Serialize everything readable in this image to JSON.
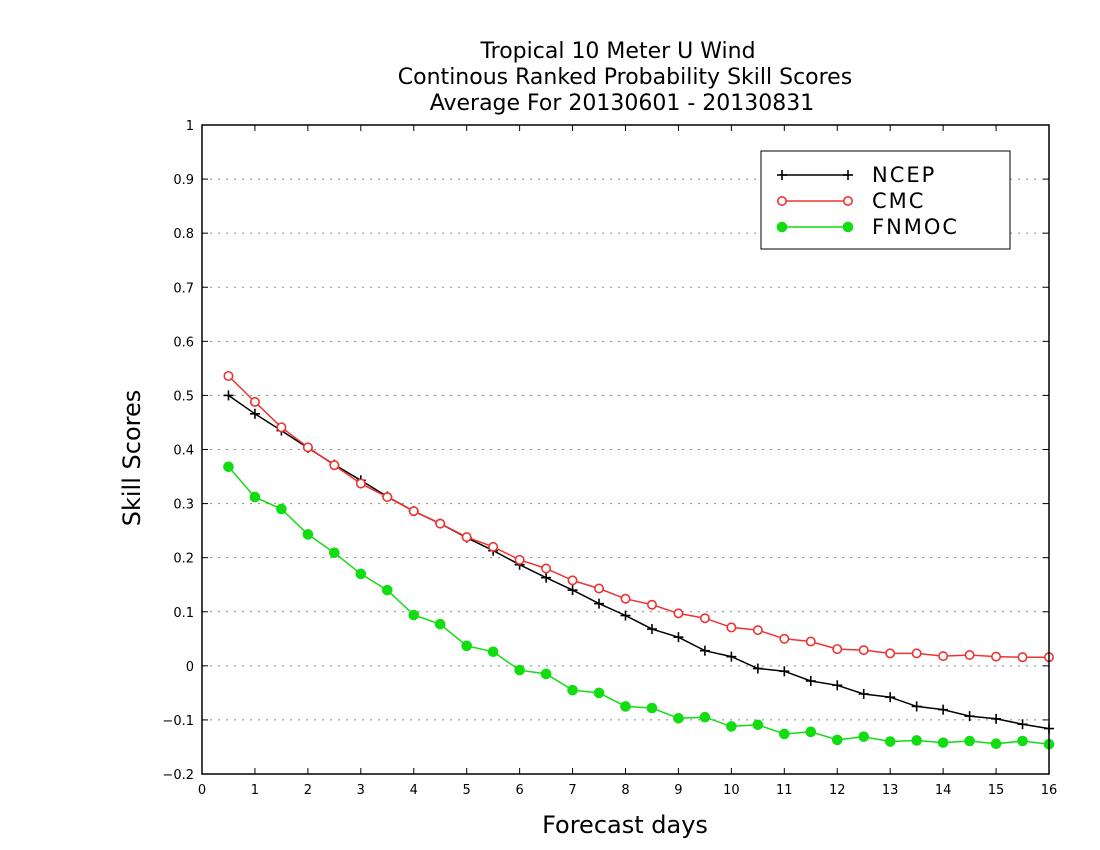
{
  "chart_data": {
    "type": "line",
    "title": [
      "Tropical 10 Meter U Wind",
      "Continous Ranked Probability Skill Scores",
      "Average For 20130601 - 20130831"
    ],
    "xlabel": "Forecast days",
    "ylabel": "Skill Scores",
    "xlim": [
      0,
      16
    ],
    "ylim": [
      -0.2,
      1
    ],
    "xticks": [
      "0",
      "1",
      "2",
      "3",
      "4",
      "5",
      "6",
      "7",
      "8",
      "9",
      "10",
      "11",
      "12",
      "13",
      "14",
      "15",
      "16"
    ],
    "yticks": [
      "−0.2",
      "−0.1",
      "0",
      "0.1",
      "0.2",
      "0.3",
      "0.4",
      "0.5",
      "0.6",
      "0.7",
      "0.8",
      "0.9",
      "1"
    ],
    "grid": "horizontal-dotted",
    "legend_position": "top-right",
    "x": [
      0.5,
      1,
      1.5,
      2,
      2.5,
      3,
      3.5,
      4,
      4.5,
      5,
      5.5,
      6,
      6.5,
      7,
      7.5,
      8,
      8.5,
      9,
      9.5,
      10,
      10.5,
      11,
      11.5,
      12,
      12.5,
      13,
      13.5,
      14,
      14.5,
      15,
      15.5,
      16
    ],
    "series": [
      {
        "name": "NCEP",
        "color": "#000000",
        "marker": "plus",
        "values": [
          0.5,
          0.466,
          0.435,
          0.403,
          0.372,
          0.343,
          0.313,
          0.286,
          0.263,
          0.237,
          0.213,
          0.187,
          0.163,
          0.14,
          0.115,
          0.093,
          0.068,
          0.053,
          0.028,
          0.017,
          -0.005,
          -0.01,
          -0.028,
          -0.036,
          -0.052,
          -0.058,
          -0.075,
          -0.081,
          -0.093,
          -0.098,
          -0.108,
          -0.116
        ]
      },
      {
        "name": "CMC",
        "color": "#ee3333",
        "marker": "open-circle",
        "values": [
          0.536,
          0.488,
          0.441,
          0.404,
          0.371,
          0.337,
          0.312,
          0.286,
          0.263,
          0.238,
          0.22,
          0.196,
          0.18,
          0.158,
          0.143,
          0.124,
          0.113,
          0.097,
          0.088,
          0.071,
          0.066,
          0.05,
          0.045,
          0.031,
          0.029,
          0.023,
          0.023,
          0.018,
          0.02,
          0.017,
          0.016,
          0.016
        ]
      },
      {
        "name": "FNMOC",
        "color": "#11dd11",
        "marker": "filled-circle",
        "values": [
          0.368,
          0.312,
          0.29,
          0.243,
          0.209,
          0.17,
          0.14,
          0.094,
          0.077,
          0.037,
          0.026,
          -0.008,
          -0.015,
          -0.045,
          -0.05,
          -0.075,
          -0.078,
          -0.097,
          -0.095,
          -0.112,
          -0.109,
          -0.126,
          -0.122,
          -0.137,
          -0.131,
          -0.14,
          -0.138,
          -0.142,
          -0.139,
          -0.144,
          -0.139,
          -0.145
        ]
      }
    ]
  }
}
